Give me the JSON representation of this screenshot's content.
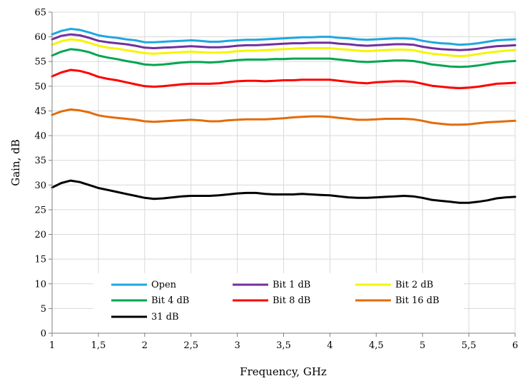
{
  "chart_data": {
    "type": "line",
    "title": "",
    "xlabel": "Frequency, GHz",
    "ylabel": "Gain, dB",
    "xlim": [
      1,
      6
    ],
    "ylim": [
      0,
      65
    ],
    "grid": true,
    "legend_position": "bottom-inside",
    "x_ticks": [
      "1",
      "1,5",
      "2",
      "2,5",
      "3",
      "3,5",
      "4",
      "4,5",
      "5",
      "5,5",
      "6"
    ],
    "y_ticks": [
      "0",
      "5",
      "10",
      "15",
      "20",
      "25",
      "30",
      "35",
      "40",
      "45",
      "50",
      "55",
      "60",
      "65"
    ],
    "x": [
      1.0,
      1.1,
      1.2,
      1.3,
      1.4,
      1.5,
      1.6,
      1.7,
      1.8,
      1.9,
      2.0,
      2.1,
      2.2,
      2.3,
      2.4,
      2.5,
      2.6,
      2.7,
      2.8,
      2.9,
      3.0,
      3.1,
      3.2,
      3.3,
      3.4,
      3.5,
      3.6,
      3.7,
      3.8,
      3.9,
      4.0,
      4.1,
      4.2,
      4.3,
      4.4,
      4.5,
      4.6,
      4.7,
      4.8,
      4.9,
      5.0,
      5.1,
      5.2,
      5.3,
      5.4,
      5.5,
      5.6,
      5.7,
      5.8,
      5.9,
      6.0
    ],
    "series": [
      {
        "name": "Open",
        "color": "#1ea7e1",
        "values": [
          60.5,
          61.2,
          61.6,
          61.4,
          60.9,
          60.3,
          60.0,
          59.8,
          59.5,
          59.3,
          58.9,
          58.9,
          59.0,
          59.1,
          59.2,
          59.3,
          59.2,
          59.0,
          59.0,
          59.2,
          59.3,
          59.4,
          59.4,
          59.5,
          59.6,
          59.7,
          59.8,
          59.9,
          59.9,
          60.0,
          60.0,
          59.8,
          59.7,
          59.5,
          59.4,
          59.5,
          59.6,
          59.7,
          59.7,
          59.6,
          59.2,
          58.9,
          58.7,
          58.6,
          58.4,
          58.5,
          58.7,
          59.0,
          59.3,
          59.4,
          59.5
        ]
      },
      {
        "name": "Bit 1 dB",
        "color": "#7030a0",
        "values": [
          59.5,
          60.2,
          60.5,
          60.3,
          59.8,
          59.2,
          58.9,
          58.7,
          58.5,
          58.2,
          57.8,
          57.7,
          57.8,
          57.9,
          58.0,
          58.1,
          58.0,
          57.9,
          57.9,
          58.0,
          58.2,
          58.3,
          58.3,
          58.4,
          58.5,
          58.6,
          58.7,
          58.7,
          58.8,
          58.8,
          58.8,
          58.6,
          58.5,
          58.3,
          58.2,
          58.3,
          58.4,
          58.5,
          58.5,
          58.4,
          58.0,
          57.7,
          57.5,
          57.4,
          57.3,
          57.4,
          57.6,
          57.9,
          58.1,
          58.2,
          58.3
        ]
      },
      {
        "name": "Bit 2 dB",
        "color": "#f5f500",
        "values": [
          58.4,
          59.1,
          59.5,
          59.3,
          58.8,
          58.2,
          57.8,
          57.6,
          57.3,
          57.0,
          56.7,
          56.6,
          56.7,
          56.8,
          56.9,
          57.0,
          56.9,
          56.8,
          56.8,
          56.9,
          57.1,
          57.2,
          57.2,
          57.3,
          57.4,
          57.5,
          57.6,
          57.7,
          57.7,
          57.7,
          57.7,
          57.5,
          57.4,
          57.2,
          57.1,
          57.2,
          57.3,
          57.4,
          57.4,
          57.3,
          56.9,
          56.6,
          56.4,
          56.2,
          56.1,
          56.2,
          56.5,
          56.8,
          57.0,
          57.2,
          57.3
        ]
      },
      {
        "name": "Bit 4 dB",
        "color": "#00a651",
        "values": [
          56.2,
          57.0,
          57.5,
          57.3,
          56.9,
          56.2,
          55.8,
          55.5,
          55.1,
          54.8,
          54.4,
          54.3,
          54.4,
          54.6,
          54.8,
          54.9,
          54.9,
          54.8,
          54.9,
          55.1,
          55.3,
          55.4,
          55.4,
          55.4,
          55.5,
          55.5,
          55.6,
          55.6,
          55.6,
          55.6,
          55.6,
          55.4,
          55.2,
          55.0,
          54.9,
          55.0,
          55.1,
          55.2,
          55.2,
          55.1,
          54.8,
          54.4,
          54.2,
          54.0,
          53.9,
          54.0,
          54.2,
          54.5,
          54.8,
          55.0,
          55.1
        ]
      },
      {
        "name": "Bit 8 dB",
        "color": "#ff0000",
        "values": [
          52.0,
          52.8,
          53.3,
          53.1,
          52.6,
          51.9,
          51.5,
          51.2,
          50.8,
          50.4,
          50.0,
          49.9,
          50.0,
          50.2,
          50.4,
          50.5,
          50.5,
          50.5,
          50.6,
          50.8,
          51.0,
          51.1,
          51.1,
          51.0,
          51.1,
          51.2,
          51.2,
          51.3,
          51.3,
          51.3,
          51.3,
          51.1,
          50.9,
          50.7,
          50.6,
          50.8,
          50.9,
          51.0,
          51.0,
          50.9,
          50.5,
          50.1,
          49.9,
          49.7,
          49.6,
          49.7,
          49.9,
          50.2,
          50.5,
          50.6,
          50.7
        ]
      },
      {
        "name": "Bit 16 dB",
        "color": "#e36c0a",
        "values": [
          44.2,
          44.9,
          45.3,
          45.1,
          44.7,
          44.1,
          43.8,
          43.6,
          43.4,
          43.2,
          42.9,
          42.8,
          42.9,
          43.0,
          43.1,
          43.2,
          43.1,
          42.9,
          42.9,
          43.1,
          43.2,
          43.3,
          43.3,
          43.3,
          43.4,
          43.5,
          43.7,
          43.8,
          43.9,
          43.9,
          43.8,
          43.6,
          43.4,
          43.2,
          43.2,
          43.3,
          43.4,
          43.4,
          43.4,
          43.3,
          43.0,
          42.6,
          42.4,
          42.2,
          42.2,
          42.3,
          42.5,
          42.7,
          42.8,
          42.9,
          43.0
        ]
      },
      {
        "name": "31 dB",
        "color": "#000000",
        "values": [
          29.5,
          30.4,
          30.9,
          30.6,
          30.0,
          29.4,
          29.0,
          28.6,
          28.2,
          27.8,
          27.4,
          27.2,
          27.3,
          27.5,
          27.7,
          27.8,
          27.8,
          27.8,
          27.9,
          28.1,
          28.3,
          28.4,
          28.4,
          28.2,
          28.1,
          28.1,
          28.1,
          28.2,
          28.1,
          28.0,
          27.9,
          27.7,
          27.5,
          27.4,
          27.4,
          27.5,
          27.6,
          27.7,
          27.8,
          27.7,
          27.4,
          27.0,
          26.8,
          26.6,
          26.4,
          26.4,
          26.6,
          26.9,
          27.3,
          27.5,
          27.6
        ]
      }
    ]
  }
}
